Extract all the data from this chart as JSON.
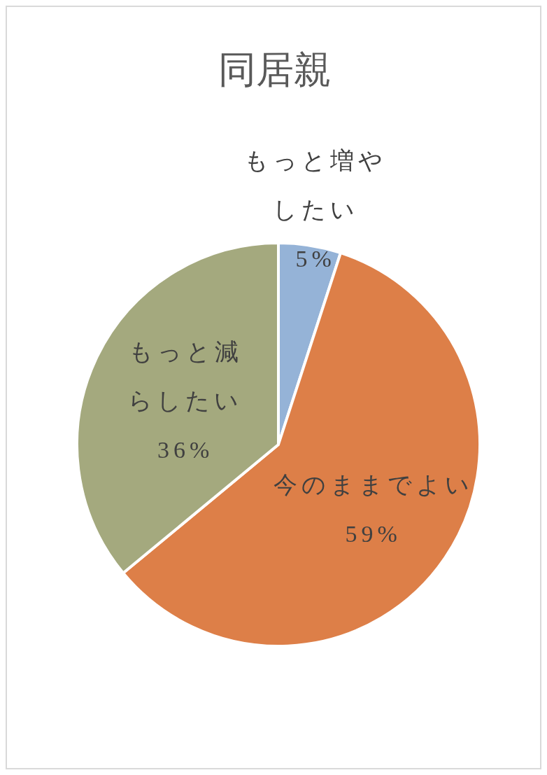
{
  "chart_data": {
    "type": "pie",
    "title": "同居親",
    "categories": [
      "もっと増やしたい",
      "今のままでよい",
      "もっと減らしたい"
    ],
    "values": [
      5,
      59,
      36
    ],
    "colors": [
      "#95b3d7",
      "#dd7f48",
      "#a4a97e"
    ],
    "value_labels": [
      "5%",
      "59%",
      "36%"
    ]
  }
}
